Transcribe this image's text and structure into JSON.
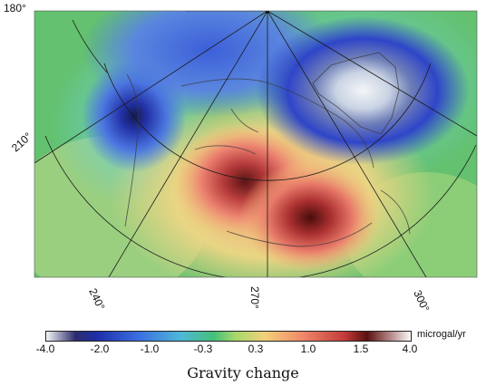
{
  "map": {
    "longitude_labels": [
      "180°",
      "210°",
      "240°",
      "270°",
      "300°"
    ]
  },
  "colorbar": {
    "tick_labels": [
      "-4.0",
      "-2.0",
      "-1.0",
      "-0.3",
      "0.3",
      "1.0",
      "1.5",
      "4.0"
    ],
    "unit": "microgal/yr",
    "title": "Gravity change"
  },
  "colors": {
    "background_green": "#5bbf6a",
    "negative_blue": "#2b3fc4",
    "positive_red": "#c23a3a",
    "ice_white": "#e8eef2"
  }
}
